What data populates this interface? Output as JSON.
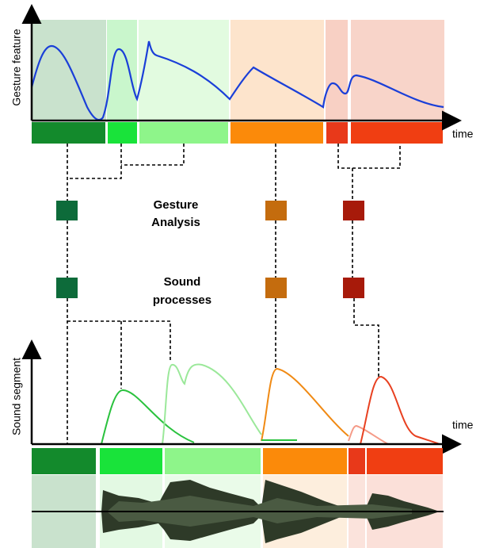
{
  "gesture_panel": {
    "y_label": "Gesture feature",
    "x_label": "time"
  },
  "middle": {
    "analysis_label": [
      "Gesture",
      "Analysis"
    ],
    "processes_label": [
      "Sound",
      "processes"
    ]
  },
  "sound_panel": {
    "y_label": "Sound segment",
    "x_label": "time"
  }
}
